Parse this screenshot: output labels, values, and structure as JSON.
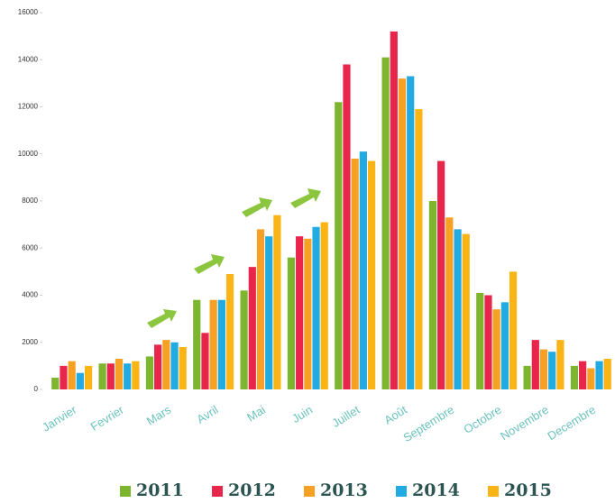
{
  "chart_data": {
    "type": "bar",
    "categories": [
      "Janvier",
      "Fevrier",
      "Mars",
      "Avril",
      "Mai",
      "Juin",
      "Juillet",
      "Août",
      "Septembre",
      "Octobre",
      "Novembre",
      "Decembre"
    ],
    "series": [
      {
        "name": "2011",
        "color": "#7db52f",
        "values": [
          500,
          1100,
          1400,
          3800,
          4200,
          5600,
          12200,
          14100,
          8000,
          4100,
          1000,
          1000
        ]
      },
      {
        "name": "2012",
        "color": "#e8264b",
        "values": [
          1000,
          1100,
          1900,
          2400,
          5200,
          6500,
          13800,
          15200,
          9700,
          4000,
          2100,
          1200
        ]
      },
      {
        "name": "2013",
        "color": "#f6a024",
        "values": [
          1200,
          1300,
          2100,
          3800,
          6800,
          6400,
          9800,
          13200,
          7300,
          3400,
          1700,
          900
        ]
      },
      {
        "name": "2014",
        "color": "#22aae2",
        "values": [
          700,
          1100,
          2000,
          3800,
          6500,
          6900,
          10100,
          13300,
          6800,
          3700,
          1600,
          1200
        ]
      },
      {
        "name": "2015",
        "color": "#fbb416",
        "values": [
          1000,
          1200,
          1800,
          4900,
          7400,
          7100,
          9700,
          11900,
          6600,
          5000,
          2100,
          1300
        ]
      }
    ],
    "ylim": [
      0,
      16000
    ],
    "yticks": [
      0,
      2000,
      4000,
      6000,
      8000,
      10000,
      12000,
      14000,
      16000
    ]
  }
}
